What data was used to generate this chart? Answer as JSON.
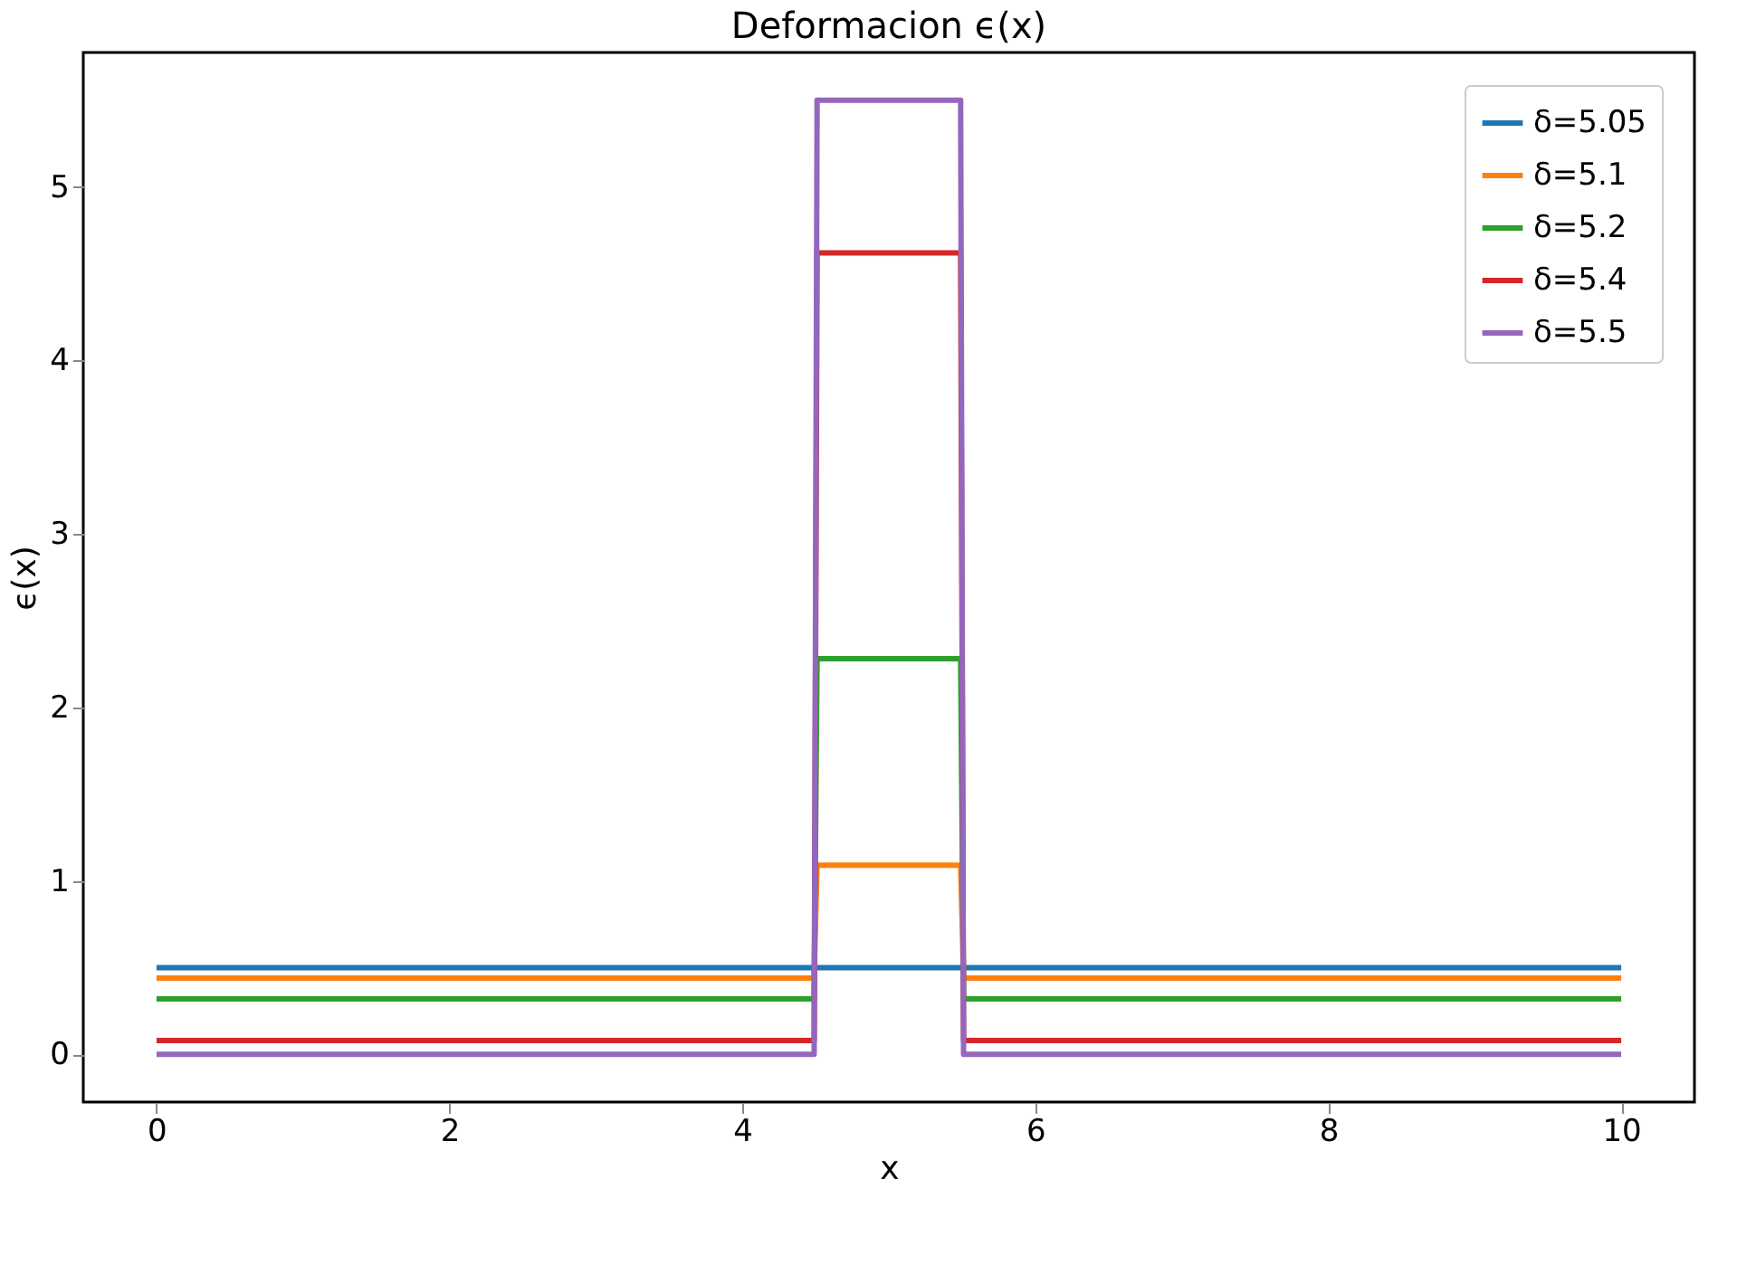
{
  "chart_data": {
    "type": "line",
    "title": "Deformacion ϵ(x)",
    "xlabel": "x",
    "ylabel": "ϵ(x)",
    "x": [
      0,
      4.49,
      4.51,
      5.49,
      5.51,
      10
    ],
    "series": [
      {
        "name": "δ=5.05",
        "color": "#1f77b4",
        "values": [
          0.5,
          0.5,
          0.5,
          0.5,
          0.5,
          0.5
        ]
      },
      {
        "name": "δ=5.1",
        "color": "#ff7f0e",
        "values": [
          0.44,
          0.44,
          1.09,
          1.09,
          0.44,
          0.44
        ]
      },
      {
        "name": "δ=5.2",
        "color": "#2ca02c",
        "values": [
          0.32,
          0.32,
          2.28,
          2.28,
          0.32,
          0.32
        ]
      },
      {
        "name": "δ=5.4",
        "color": "#d62728",
        "values": [
          0.08,
          0.08,
          4.62,
          4.62,
          0.08,
          0.08
        ]
      },
      {
        "name": "δ=5.5",
        "color": "#9467bd",
        "values": [
          0,
          0,
          5.5,
          5.5,
          0,
          0
        ]
      }
    ],
    "xlim": [
      -0.5,
      10.5
    ],
    "ylim": [
      -0.275,
      5.775
    ],
    "xticks": [
      0,
      2,
      4,
      6,
      8,
      10
    ],
    "yticks": [
      0,
      1,
      2,
      3,
      4,
      5
    ],
    "grid": false,
    "legend": "top right",
    "marker": "none",
    "line_style": "solid"
  }
}
